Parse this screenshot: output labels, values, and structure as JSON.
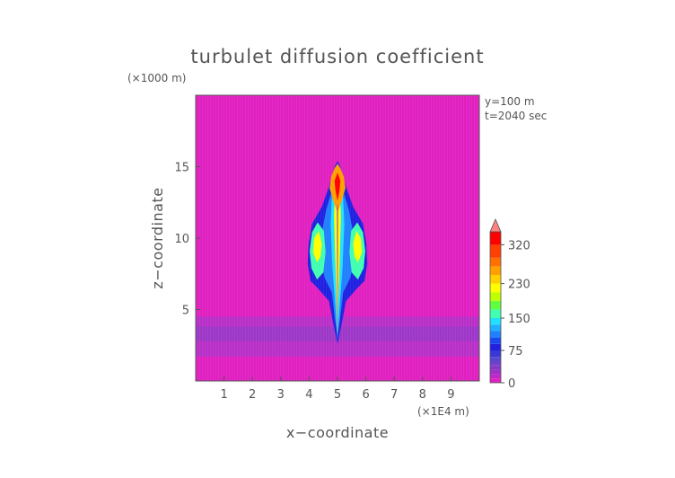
{
  "chart_data": {
    "type": "heatmap",
    "title": "turbulet diffusion coefficient",
    "xlabel": "x−coordinate",
    "ylabel": "z−coordinate",
    "x_unit": "(×1E4 m)",
    "y_unit": "(×1000 m)",
    "annotations": [
      "y=100 m",
      "t=2040 sec"
    ],
    "xlim": [
      0,
      10
    ],
    "ylim": [
      0,
      20
    ],
    "x_ticks": [
      1,
      2,
      3,
      4,
      5,
      6,
      7,
      8,
      9
    ],
    "y_ticks": [
      5,
      10,
      15
    ],
    "colorbar": {
      "min": 0,
      "max": 350,
      "tick_values": [
        0,
        75,
        150,
        230,
        320
      ],
      "tick_labels": [
        "0",
        "75",
        "150",
        "230",
        "320"
      ],
      "bands": [
        {
          "from": 0,
          "to": 10,
          "color": "#e020c0"
        },
        {
          "from": 10,
          "to": 20,
          "color": "#c028c8"
        },
        {
          "from": 20,
          "to": 30,
          "color": "#a030c8"
        },
        {
          "from": 30,
          "to": 40,
          "color": "#8838c8"
        },
        {
          "from": 40,
          "to": 50,
          "color": "#7040c8"
        },
        {
          "from": 50,
          "to": 60,
          "color": "#5848d0"
        },
        {
          "from": 60,
          "to": 75,
          "color": "#3838d8"
        },
        {
          "from": 75,
          "to": 90,
          "color": "#2020e0"
        },
        {
          "from": 90,
          "to": 105,
          "color": "#1848f0"
        },
        {
          "from": 105,
          "to": 120,
          "color": "#2080ff"
        },
        {
          "from": 120,
          "to": 135,
          "color": "#20b0ff"
        },
        {
          "from": 135,
          "to": 150,
          "color": "#20e0ff"
        },
        {
          "from": 150,
          "to": 170,
          "color": "#40ffb0"
        },
        {
          "from": 170,
          "to": 190,
          "color": "#60ff40"
        },
        {
          "from": 190,
          "to": 210,
          "color": "#c0ff00"
        },
        {
          "from": 210,
          "to": 230,
          "color": "#ffff00"
        },
        {
          "from": 230,
          "to": 250,
          "color": "#ffd000"
        },
        {
          "from": 250,
          "to": 270,
          "color": "#ffa000"
        },
        {
          "from": 270,
          "to": 290,
          "color": "#ff7000"
        },
        {
          "from": 290,
          "to": 320,
          "color": "#ff4000"
        },
        {
          "from": 320,
          "to": 350,
          "color": "#ff0000"
        }
      ],
      "overflow_color": "#ff8080"
    },
    "field": {
      "background_color": "#e020c0",
      "layers": [
        {
          "z": [
            1.7,
            4.5
          ],
          "level": 35,
          "color": "#b034c8"
        },
        {
          "z": [
            2.8,
            3.8
          ],
          "level": 45,
          "color": "#9838c8"
        }
      ],
      "plume_center_x": 5.0,
      "plume_base_z": 2.8,
      "plume_top_z": 15.4
    }
  }
}
